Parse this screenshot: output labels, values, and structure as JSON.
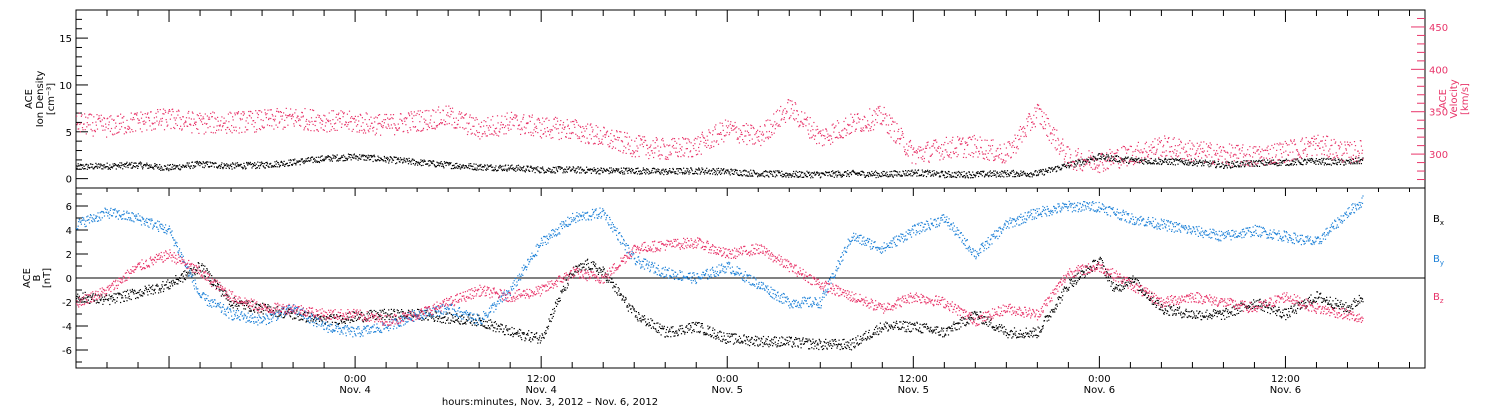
{
  "chart_data": [
    {
      "type": "scatter",
      "panel": "top",
      "ylabel_lines": [
        "ACE",
        "Ion Density",
        "[cm⁻³]"
      ],
      "ylim": [
        -1,
        18
      ],
      "yticks": [
        0,
        5,
        10,
        15
      ],
      "y2label_lines": [
        "ACE",
        "Velocity",
        "[km/s]"
      ],
      "y2lim": [
        260,
        470
      ],
      "y2ticks": [
        300,
        350,
        400,
        450
      ],
      "xlim_hours": [
        -18,
        69
      ],
      "series": [
        {
          "color": "#000000",
          "axis": "left",
          "points": [
            [
              -18,
              1.3
            ],
            [
              -16,
              1.4
            ],
            [
              -14,
              1.5
            ],
            [
              -12,
              1.2
            ],
            [
              -10,
              1.6
            ],
            [
              -8,
              1.4
            ],
            [
              -6,
              1.5
            ],
            [
              -4,
              1.8
            ],
            [
              -2,
              2.2
            ],
            [
              0,
              2.4
            ],
            [
              2,
              2.1
            ],
            [
              4,
              1.8
            ],
            [
              6,
              1.5
            ],
            [
              8,
              1.3
            ],
            [
              10,
              1.2
            ],
            [
              12,
              1.0
            ],
            [
              14,
              1.0
            ],
            [
              16,
              0.9
            ],
            [
              18,
              0.9
            ],
            [
              20,
              0.8
            ],
            [
              22,
              0.9
            ],
            [
              24,
              0.8
            ],
            [
              26,
              0.6
            ],
            [
              28,
              0.5
            ],
            [
              30,
              0.5
            ],
            [
              32,
              0.6
            ],
            [
              34,
              0.5
            ],
            [
              36,
              0.7
            ],
            [
              38,
              0.5
            ],
            [
              40,
              0.5
            ],
            [
              42,
              0.6
            ],
            [
              44,
              0.6
            ],
            [
              46,
              1.5
            ],
            [
              48,
              2.4
            ],
            [
              50,
              2.0
            ],
            [
              52,
              1.9
            ],
            [
              54,
              1.8
            ],
            [
              56,
              1.5
            ],
            [
              58,
              1.7
            ],
            [
              60,
              1.8
            ],
            [
              62,
              1.9
            ],
            [
              64,
              1.8
            ],
            [
              65,
              2.0
            ]
          ]
        },
        {
          "color": "#e8356a",
          "axis": "right",
          "points": [
            [
              -18,
              337
            ],
            [
              -16,
              333
            ],
            [
              -14,
              339
            ],
            [
              -12,
              342
            ],
            [
              -10,
              337
            ],
            [
              -8,
              338
            ],
            [
              -6,
              340
            ],
            [
              -4,
              343
            ],
            [
              -2,
              340
            ],
            [
              0,
              338
            ],
            [
              2,
              335
            ],
            [
              4,
              340
            ],
            [
              6,
              345
            ],
            [
              8,
              330
            ],
            [
              10,
              338
            ],
            [
              12,
              332
            ],
            [
              14,
              330
            ],
            [
              16,
              320
            ],
            [
              18,
              310
            ],
            [
              20,
              306
            ],
            [
              22,
              310
            ],
            [
              24,
              330
            ],
            [
              26,
              320
            ],
            [
              28,
              355
            ],
            [
              30,
              320
            ],
            [
              32,
              336
            ],
            [
              34,
              345
            ],
            [
              36,
              300
            ],
            [
              38,
              308
            ],
            [
              40,
              310
            ],
            [
              42,
              300
            ],
            [
              44,
              350
            ],
            [
              46,
              295
            ],
            [
              48,
              292
            ],
            [
              50,
              300
            ],
            [
              52,
              310
            ],
            [
              54,
              304
            ],
            [
              56,
              300
            ],
            [
              58,
              298
            ],
            [
              60,
              304
            ],
            [
              62,
              312
            ],
            [
              64,
              302
            ],
            [
              65,
              305
            ]
          ]
        }
      ]
    },
    {
      "type": "scatter",
      "panel": "bottom",
      "ylabel_lines": [
        "ACE",
        "B",
        "[nT]"
      ],
      "ylim": [
        -7.5,
        7.5
      ],
      "yticks": [
        -6,
        -4,
        -2,
        0,
        2,
        4,
        6
      ],
      "xlim_hours": [
        -18,
        69
      ],
      "legend": [
        "B",
        "B",
        "B"
      ],
      "legend_subscripts": [
        "x",
        "y",
        "z"
      ],
      "series": [
        {
          "color": "#000000",
          "points": [
            [
              -18,
              -1.5
            ],
            [
              -16,
              -1.8
            ],
            [
              -14,
              -1.2
            ],
            [
              -12,
              -0.5
            ],
            [
              -10,
              1.0
            ],
            [
              -8,
              -2.0
            ],
            [
              -6,
              -2.5
            ],
            [
              -4,
              -3.0
            ],
            [
              -2,
              -3.5
            ],
            [
              0,
              -3.2
            ],
            [
              2,
              -3.0
            ],
            [
              4,
              -3.0
            ],
            [
              6,
              -3.3
            ],
            [
              8,
              -3.5
            ],
            [
              10,
              -4.5
            ],
            [
              12,
              -5.0
            ],
            [
              13,
              -2.0
            ],
            [
              14,
              0.5
            ],
            [
              15,
              1.2
            ],
            [
              16,
              0.5
            ],
            [
              18,
              -3.0
            ],
            [
              20,
              -4.5
            ],
            [
              22,
              -4.0
            ],
            [
              24,
              -5.0
            ],
            [
              26,
              -5.2
            ],
            [
              28,
              -5.3
            ],
            [
              30,
              -5.5
            ],
            [
              32,
              -5.5
            ],
            [
              34,
              -4.0
            ],
            [
              36,
              -4.0
            ],
            [
              38,
              -4.5
            ],
            [
              40,
              -3.0
            ],
            [
              42,
              -4.5
            ],
            [
              44,
              -4.5
            ],
            [
              46,
              -0.5
            ],
            [
              48,
              1.5
            ],
            [
              49,
              -1.0
            ],
            [
              50,
              0.0
            ],
            [
              52,
              -2.5
            ],
            [
              54,
              -3.0
            ],
            [
              56,
              -3.0
            ],
            [
              58,
              -2.0
            ],
            [
              60,
              -3.0
            ],
            [
              62,
              -1.5
            ],
            [
              64,
              -2.5
            ],
            [
              65,
              -1.5
            ]
          ]
        },
        {
          "color": "#1f82d8",
          "points": [
            [
              -18,
              4.5
            ],
            [
              -16,
              5.5
            ],
            [
              -14,
              5.0
            ],
            [
              -12,
              4.0
            ],
            [
              -10,
              -1.5
            ],
            [
              -8,
              -3.0
            ],
            [
              -6,
              -3.5
            ],
            [
              -4,
              -2.5
            ],
            [
              -2,
              -4.0
            ],
            [
              0,
              -4.5
            ],
            [
              2,
              -4.0
            ],
            [
              4,
              -3.0
            ],
            [
              6,
              -2.5
            ],
            [
              8,
              -3.5
            ],
            [
              10,
              -1.0
            ],
            [
              12,
              3.0
            ],
            [
              14,
              5.0
            ],
            [
              16,
              5.5
            ],
            [
              18,
              1.5
            ],
            [
              20,
              0.5
            ],
            [
              22,
              0.0
            ],
            [
              24,
              1.0
            ],
            [
              26,
              -0.5
            ],
            [
              28,
              -2.0
            ],
            [
              30,
              -2.0
            ],
            [
              32,
              3.5
            ],
            [
              34,
              2.5
            ],
            [
              36,
              4.0
            ],
            [
              38,
              5.0
            ],
            [
              40,
              2.0
            ],
            [
              42,
              4.5
            ],
            [
              44,
              5.5
            ],
            [
              46,
              6.0
            ],
            [
              48,
              6.0
            ],
            [
              50,
              5.0
            ],
            [
              52,
              4.5
            ],
            [
              54,
              4.0
            ],
            [
              56,
              3.5
            ],
            [
              58,
              4.0
            ],
            [
              60,
              3.5
            ],
            [
              62,
              3.0
            ],
            [
              64,
              5.5
            ],
            [
              65,
              6.5
            ]
          ]
        },
        {
          "color": "#e8356a",
          "points": [
            [
              -18,
              -2.0
            ],
            [
              -16,
              -1.0
            ],
            [
              -14,
              1.0
            ],
            [
              -12,
              2.0
            ],
            [
              -10,
              0.5
            ],
            [
              -8,
              -1.5
            ],
            [
              -6,
              -2.5
            ],
            [
              -4,
              -2.5
            ],
            [
              -2,
              -3.0
            ],
            [
              0,
              -3.0
            ],
            [
              2,
              -3.5
            ],
            [
              4,
              -3.0
            ],
            [
              6,
              -2.0
            ],
            [
              8,
              -1.0
            ],
            [
              10,
              -1.5
            ],
            [
              12,
              -1.0
            ],
            [
              14,
              0.5
            ],
            [
              16,
              0.0
            ],
            [
              18,
              2.5
            ],
            [
              20,
              2.8
            ],
            [
              22,
              3.0
            ],
            [
              24,
              2.0
            ],
            [
              26,
              2.5
            ],
            [
              28,
              1.0
            ],
            [
              30,
              -0.5
            ],
            [
              32,
              -1.5
            ],
            [
              34,
              -2.5
            ],
            [
              36,
              -1.5
            ],
            [
              38,
              -2.0
            ],
            [
              40,
              -3.5
            ],
            [
              42,
              -2.5
            ],
            [
              44,
              -3.0
            ],
            [
              46,
              0.5
            ],
            [
              48,
              1.0
            ],
            [
              50,
              -0.5
            ],
            [
              52,
              -2.0
            ],
            [
              54,
              -1.5
            ],
            [
              56,
              -2.0
            ],
            [
              58,
              -2.5
            ],
            [
              60,
              -1.5
            ],
            [
              62,
              -2.5
            ],
            [
              64,
              -3.0
            ],
            [
              65,
              -3.5
            ]
          ]
        }
      ]
    }
  ],
  "x_axis": {
    "tick_labels": [
      {
        "hour": 0,
        "time": "0:00",
        "date": "Nov. 4"
      },
      {
        "hour": 12,
        "time": "12:00",
        "date": "Nov. 4"
      },
      {
        "hour": 24,
        "time": "0:00",
        "date": "Nov. 5"
      },
      {
        "hour": 36,
        "time": "12:00",
        "date": "Nov. 5"
      },
      {
        "hour": 48,
        "time": "0:00",
        "date": "Nov. 6"
      },
      {
        "hour": 60,
        "time": "12:00",
        "date": "Nov. 6"
      }
    ],
    "title": "hours:minutes, Nov.  3, 2012 – Nov.  6, 2012"
  }
}
